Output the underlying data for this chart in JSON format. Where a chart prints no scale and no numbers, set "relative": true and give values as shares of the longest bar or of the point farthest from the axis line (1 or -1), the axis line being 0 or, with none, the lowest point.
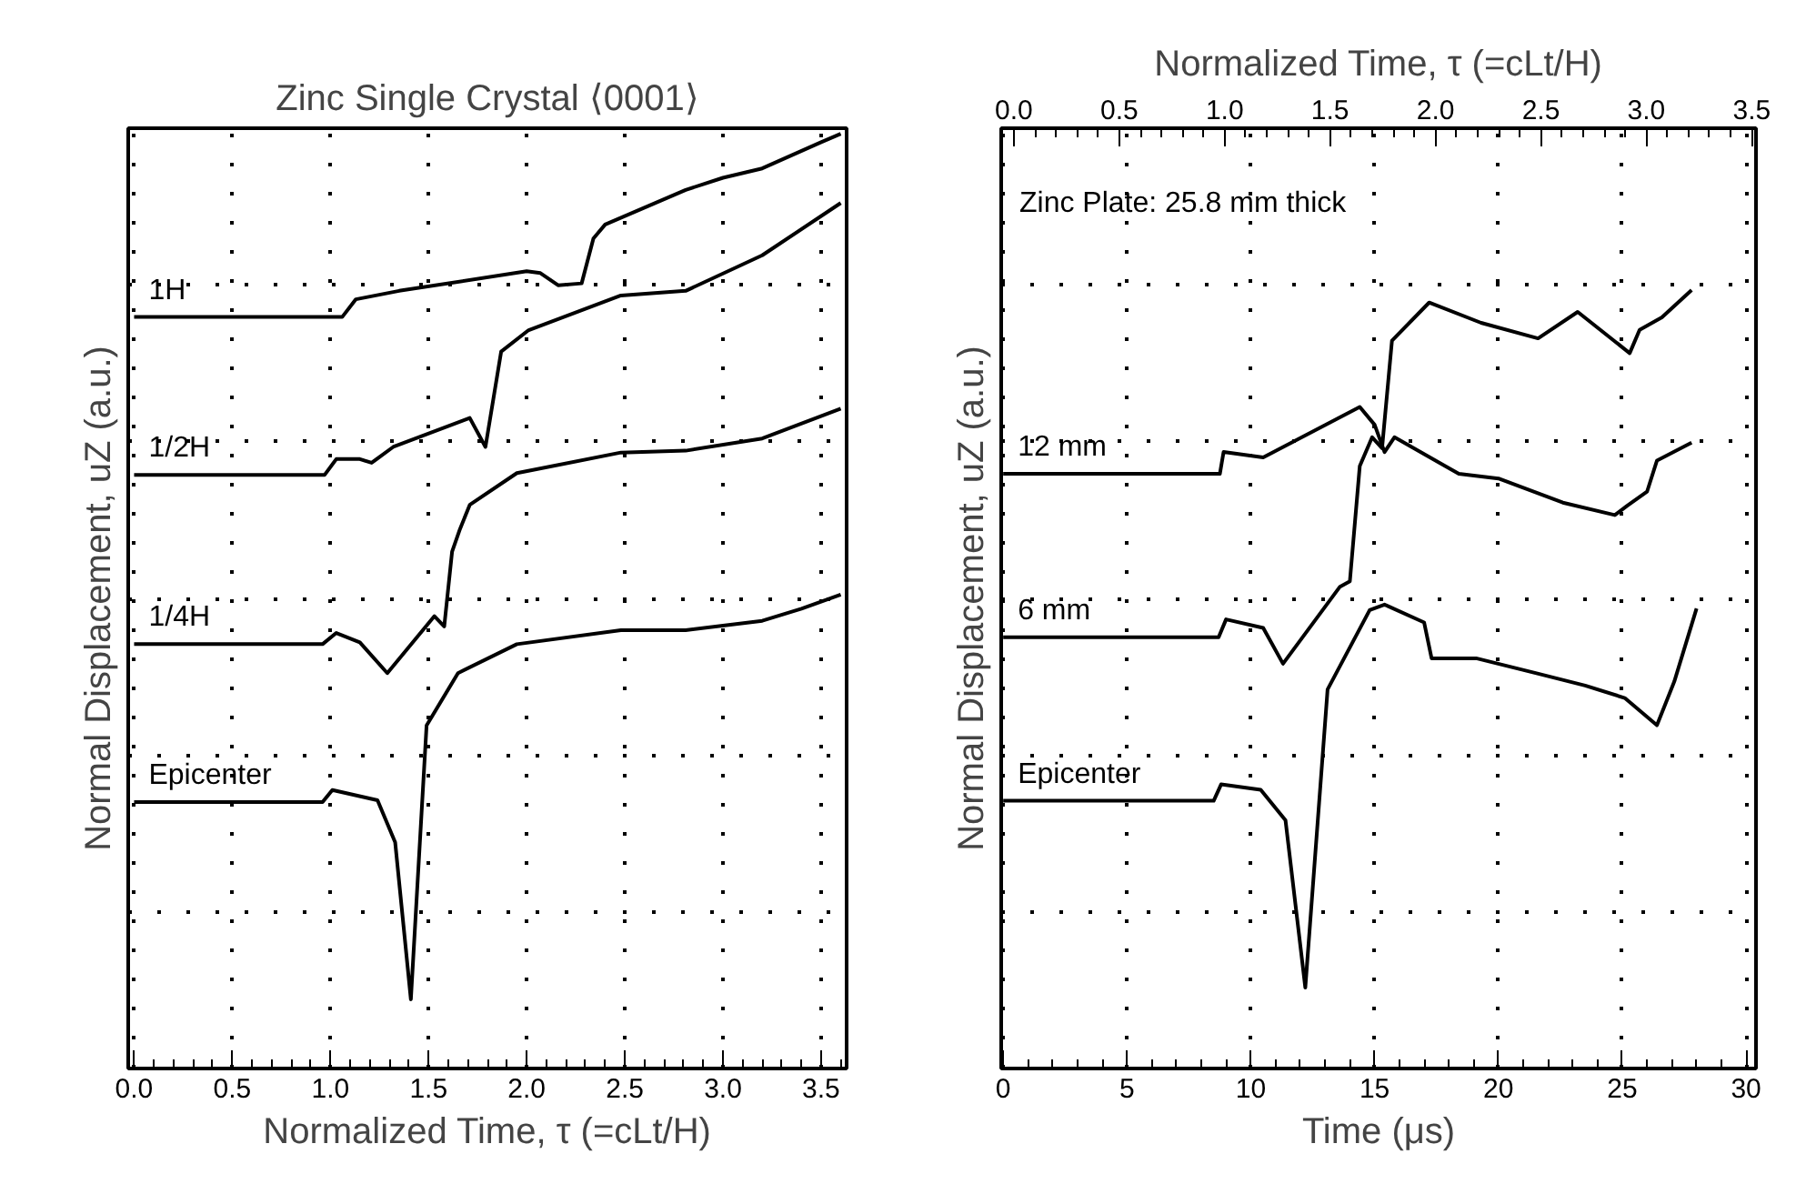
{
  "chart_data": [
    {
      "type": "line",
      "title": "Zinc Single Crystal ⟨0001⟩",
      "xlabel": "Normalized Time, τ (=cLt/H)",
      "ylabel": "Normal Displacement, uZ (a.u.)",
      "relative": true,
      "grid": true,
      "legend": false,
      "tick_labels": "x",
      "xlim": [
        -0.03,
        3.63
      ],
      "xticks": [
        {
          "value": 0,
          "label": "0.0"
        },
        {
          "value": 0.5,
          "label": "0.5"
        },
        {
          "value": 1,
          "label": "1.0"
        },
        {
          "value": 1.5,
          "label": "1.5"
        },
        {
          "value": 2,
          "label": "2.0"
        },
        {
          "value": 2.5,
          "label": "2.5"
        },
        {
          "value": 3,
          "label": "3.0"
        },
        {
          "value": 3.5,
          "label": "3.5"
        }
      ],
      "series": [
        {
          "name": "1H",
          "color": "#000000",
          "x": [
            0,
            1.06,
            1.13,
            1.35,
            2.0,
            2.07,
            2.16,
            2.28,
            2.34,
            2.4,
            2.81,
            3.0,
            3.2,
            3.5,
            3.6
          ],
          "values": [
            0.804,
            0.804,
            0.823,
            0.832,
            0.853,
            0.851,
            0.838,
            0.84,
            0.888,
            0.903,
            0.94,
            0.953,
            0.963,
            0.991,
            1.0
          ]
        },
        {
          "name": "1/2H",
          "color": "#000000",
          "x": [
            0,
            0.97,
            1.03,
            1.15,
            1.21,
            1.32,
            1.71,
            1.79,
            1.87,
            2.01,
            2.48,
            2.81,
            3.2,
            3.6
          ],
          "values": [
            0.635,
            0.635,
            0.652,
            0.652,
            0.648,
            0.665,
            0.696,
            0.665,
            0.767,
            0.79,
            0.827,
            0.832,
            0.87,
            0.926
          ]
        },
        {
          "name": "1/4H",
          "color": "#000000",
          "x": [
            0,
            0.96,
            1.03,
            1.15,
            1.29,
            1.53,
            1.58,
            1.62,
            1.66,
            1.71,
            1.95,
            2.48,
            2.81,
            3.2,
            3.6
          ],
          "values": [
            0.454,
            0.454,
            0.466,
            0.456,
            0.423,
            0.484,
            0.473,
            0.553,
            0.577,
            0.603,
            0.637,
            0.659,
            0.661,
            0.674,
            0.706
          ]
        },
        {
          "name": "Epicenter",
          "color": "#000000",
          "x": [
            0,
            0.96,
            1.01,
            1.24,
            1.33,
            1.41,
            1.49,
            1.65,
            1.95,
            2.48,
            2.81,
            3.2,
            3.4,
            3.6
          ],
          "values": [
            0.285,
            0.285,
            0.298,
            0.287,
            0.242,
            0.074,
            0.367,
            0.423,
            0.454,
            0.469,
            0.469,
            0.479,
            0.492,
            0.507
          ]
        }
      ]
    },
    {
      "type": "line",
      "xlabel": "Time (μs)",
      "x2label": "Normalized Time, τ (=cLt/H)",
      "ylabel": "Normal Displacement, uZ (a.u.)",
      "relative": true,
      "grid": true,
      "legend": false,
      "tick_labels": "x",
      "xlim": [
        -0.08,
        30.4
      ],
      "xticks": [
        0,
        5,
        10,
        15,
        20,
        25,
        30
      ],
      "x2lim": [
        -0.06,
        3.52
      ],
      "x2ticks": [
        {
          "value": 0,
          "label": "0.0"
        },
        {
          "value": 0.5,
          "label": "0.5"
        },
        {
          "value": 1,
          "label": "1.0"
        },
        {
          "value": 1.5,
          "label": "1.5"
        },
        {
          "value": 2,
          "label": "2.0"
        },
        {
          "value": 2.5,
          "label": "2.5"
        },
        {
          "value": 3,
          "label": "3.0"
        },
        {
          "value": 3.5,
          "label": "3.5"
        }
      ],
      "annotations": [
        "Zinc Plate: 25.8 mm thick"
      ],
      "series": [
        {
          "name": "12 mm",
          "color": "#000000",
          "x": [
            0,
            8.75,
            8.9,
            10.5,
            14.4,
            15.0,
            15.4,
            15.8,
            18.4,
            20,
            22.6,
            24.7,
            25.2,
            26,
            26.4,
            27.8
          ],
          "values": [
            0.764,
            0.764,
            0.792,
            0.785,
            0.85,
            0.827,
            0.792,
            0.811,
            0.764,
            0.758,
            0.727,
            0.711,
            0.723,
            0.741,
            0.781,
            0.804
          ]
        },
        {
          "name": "6 mm",
          "color": "#000000",
          "x": [
            0,
            8.7,
            9.0,
            10.5,
            11.3,
            13.6,
            14.0,
            14.4,
            14.9,
            15.3,
            15.7,
            17.2,
            19.3,
            21.6,
            23.2,
            25.3,
            25.7,
            26.6,
            27.8
          ],
          "values": [
            0.554,
            0.554,
            0.577,
            0.566,
            0.52,
            0.619,
            0.626,
            0.774,
            0.811,
            0.797,
            0.935,
            0.984,
            0.958,
            0.938,
            0.972,
            0.919,
            0.949,
            0.965,
            1.0
          ]
        },
        {
          "name": "Epicenter",
          "color": "#000000",
          "x": [
            0,
            8.5,
            8.8,
            10.4,
            11.4,
            12.2,
            13.1,
            14.8,
            15.4,
            17,
            17.3,
            19.1,
            21.5,
            23.5,
            25.1,
            26.4,
            27.1,
            28.0
          ],
          "values": [
            0.344,
            0.344,
            0.365,
            0.358,
            0.319,
            0.104,
            0.487,
            0.589,
            0.596,
            0.573,
            0.527,
            0.527,
            0.508,
            0.492,
            0.476,
            0.441,
            0.497,
            0.591
          ]
        }
      ]
    }
  ]
}
